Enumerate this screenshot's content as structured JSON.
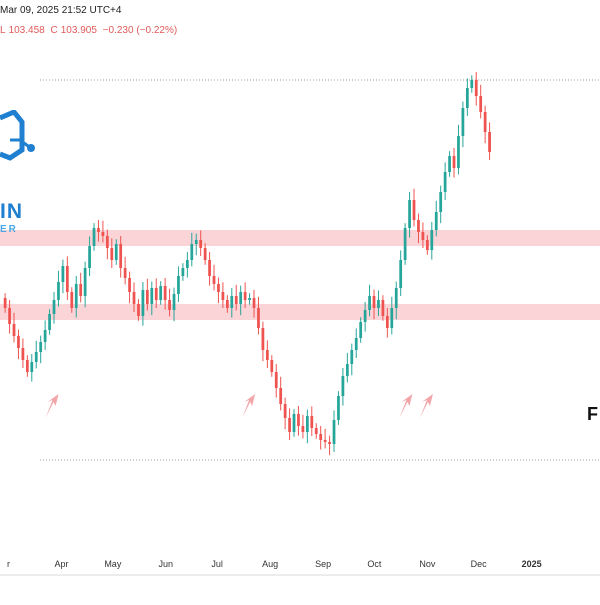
{
  "header": {
    "timestamp": "Mar 09, 2025 21:52 UTC+4",
    "ohlc": {
      "low_label": "L",
      "low_value": "103.458",
      "close_label": "C",
      "close_value": "103.905",
      "change": "−0.230 (−0.22%)"
    }
  },
  "watermark": {
    "text": "IN",
    "subtext": "ER",
    "icon": "circuit-logo-icon",
    "color": "#1f7fd1"
  },
  "side_label": "F",
  "colors": {
    "up": "#26a69a",
    "down": "#ef5350",
    "zone": "#fbd4d8",
    "arrow": "#f3a6aa",
    "axis_text": "#333333"
  },
  "chart_data": {
    "type": "candlestick",
    "title": "",
    "xlabel": "",
    "ylabel": "",
    "x_ticks": [
      "r",
      "Apr",
      "May",
      "Jun",
      "Jul",
      "Aug",
      "Sep",
      "Oct",
      "Nov",
      "Dec",
      "2025"
    ],
    "x_tick_dates": [
      "2024-03-01",
      "2024-04-01",
      "2024-05-01",
      "2024-06-01",
      "2024-07-01",
      "2024-08-01",
      "2024-09-01",
      "2024-10-01",
      "2024-11-01",
      "2024-12-01",
      "2025-01-01"
    ],
    "x_range": [
      "2024-02-25",
      "2025-02-10"
    ],
    "y_range": [
      99.0,
      110.5
    ],
    "grid": false,
    "dotted_levels": [
      110.0,
      100.5
    ],
    "zones": [
      {
        "low": 105.85,
        "high": 106.25
      },
      {
        "low": 104.0,
        "high": 104.4
      }
    ],
    "arrows": [
      "2024-03-25",
      "2024-07-18",
      "2024-10-18",
      "2024-10-30"
    ],
    "series": [
      {
        "date_start": "2024-02-28",
        "interval_days": 2.6,
        "close": [
          104.3,
          103.9,
          103.6,
          103.3,
          103.0,
          102.7,
          102.95,
          103.2,
          103.45,
          103.75,
          104.15,
          104.5,
          104.95,
          105.35,
          104.7,
          104.3,
          104.9,
          104.6,
          105.3,
          105.85,
          106.3,
          106.2,
          106.1,
          105.8,
          105.5,
          105.9,
          105.3,
          105.05,
          104.7,
          104.4,
          104.1,
          104.75,
          104.4,
          104.8,
          104.5,
          104.85,
          104.5,
          104.25,
          104.65,
          105.1,
          105.3,
          105.5,
          105.9,
          106.0,
          105.8,
          105.5,
          105.1,
          104.9,
          104.7,
          104.5,
          104.3,
          104.6,
          104.4,
          104.7,
          104.5,
          104.55,
          104.3,
          103.8,
          103.25,
          103.0,
          102.7,
          102.3,
          101.9,
          101.55,
          101.2,
          101.65,
          101.35,
          101.2,
          101.6,
          101.3,
          101.15,
          101.0,
          100.95,
          100.9,
          101.5,
          102.1,
          102.6,
          102.9,
          103.25,
          103.55,
          103.95,
          104.25,
          104.6,
          104.3,
          104.5,
          104.1,
          103.8,
          104.3,
          104.8,
          105.5,
          106.3,
          107.0,
          106.5,
          106.2,
          106.0,
          105.75,
          106.25,
          106.7,
          107.2,
          107.7,
          108.1,
          107.8,
          108.6,
          109.3,
          109.8,
          110.0,
          109.6,
          109.2,
          108.7,
          108.2
        ]
      }
    ]
  }
}
